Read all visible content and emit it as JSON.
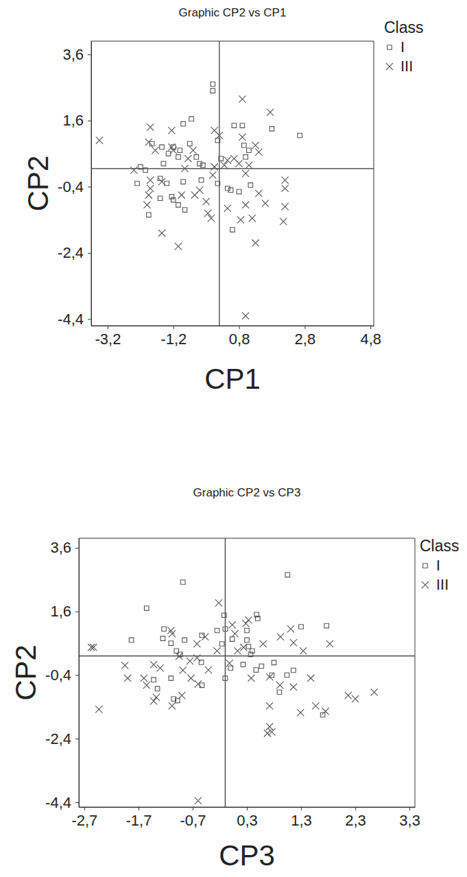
{
  "chart_data": [
    {
      "type": "scatter",
      "title": "Graphic CP2 vs CP1",
      "x_label": "CP1",
      "y_label": "CP2",
      "legend_title": "Class",
      "legend": "right",
      "grid": false,
      "xlim": [
        -3.7,
        4.9
      ],
      "ylim": [
        -4.6,
        4.0
      ],
      "xticks": [
        {
          "value": -3.2,
          "label": "-3,2"
        },
        {
          "value": -1.2,
          "label": "-1,2"
        },
        {
          "value": 0.8,
          "label": "0,8"
        },
        {
          "value": 2.8,
          "label": "2,8"
        },
        {
          "value": 4.8,
          "label": "4,8"
        }
      ],
      "yticks": [
        {
          "value": 3.6,
          "label": "3,6"
        },
        {
          "value": 1.6,
          "label": "1,6"
        },
        {
          "value": -0.4,
          "label": "-0,4"
        },
        {
          "value": -2.4,
          "label": "-2,4"
        },
        {
          "value": -4.4,
          "label": "-4,4"
        }
      ],
      "reference_lines": {
        "x": 0.2,
        "y": 0.15
      },
      "series": [
        {
          "name": "I",
          "marker": "square",
          "color": "#555555",
          "x": [
            0.0,
            0.0,
            -0.65,
            -0.9,
            0.65,
            0.9,
            1.8,
            2.65,
            0.15,
            -1.85,
            -1.55,
            -1.2,
            -1.0,
            -0.7,
            -1.35,
            -1.05,
            -0.5,
            0.95,
            1.1,
            1.0,
            -1.5,
            -0.4,
            -0.3,
            0.25,
            -2.2,
            -2.3,
            -1.6,
            -1.4,
            -0.9,
            -0.35,
            0.15,
            0.45,
            0.55,
            0.8,
            -1.6,
            -1.25,
            -1.2,
            -1.05,
            -0.85,
            -1.95,
            0.6,
            1.15,
            -2.05
          ],
          "values": [
            2.7,
            2.5,
            1.65,
            1.5,
            1.45,
            1.45,
            1.35,
            1.15,
            1.0,
            0.9,
            0.8,
            0.8,
            0.7,
            0.9,
            0.6,
            0.5,
            0.5,
            0.85,
            0.7,
            0.5,
            0.3,
            0.3,
            0.25,
            0.45,
            0.2,
            -0.3,
            -0.15,
            -0.3,
            -0.25,
            -0.2,
            -0.3,
            -0.45,
            -0.5,
            -0.55,
            -0.75,
            -0.7,
            -0.8,
            -0.95,
            -1.1,
            -1.25,
            -1.7,
            -0.35,
            0.1
          ]
        },
        {
          "name": "III",
          "marker": "cross",
          "color": "#555555",
          "x": [
            -3.45,
            0.9,
            1.75,
            -1.9,
            -1.25,
            0.05,
            0.2,
            0.9,
            -1.95,
            -1.75,
            -1.25,
            -1.2,
            -0.6,
            1.3,
            1.4,
            -0.85,
            0.45,
            0.65,
            0.8,
            0.35,
            0.05,
            1.1,
            -2.4,
            -1.9,
            -1.55,
            0.0,
            1.0,
            2.2,
            2.2,
            -1.9,
            -1.95,
            -2.0,
            -0.4,
            -0.55,
            -0.95,
            -0.2,
            1.0,
            1.4,
            1.6,
            2.2,
            -0.15,
            -0.05,
            0.45,
            1.2,
            2.15,
            0.85,
            -1.55,
            -1.05,
            1.3,
            1.0,
            -0.75
          ],
          "values": [
            1.0,
            2.25,
            1.85,
            1.4,
            1.3,
            1.3,
            1.15,
            1.1,
            0.95,
            0.7,
            0.8,
            0.7,
            0.7,
            0.85,
            0.65,
            0.15,
            0.4,
            0.45,
            0.3,
            0.25,
            0.2,
            0.25,
            0.1,
            -0.2,
            -0.25,
            -0.05,
            0.0,
            -0.2,
            -0.45,
            -0.45,
            -0.65,
            -0.95,
            -0.5,
            -0.65,
            -0.65,
            -0.85,
            -0.95,
            -0.6,
            -0.9,
            -1.0,
            -1.2,
            -1.35,
            -1.05,
            -1.35,
            -1.45,
            -1.4,
            -1.8,
            -2.2,
            -2.1,
            -4.3,
            0.45
          ]
        }
      ]
    },
    {
      "type": "scatter",
      "title": "Graphic CP2 vs CP3",
      "x_label": "CP3",
      "y_label": "CP2",
      "legend_title": "Class",
      "legend": "right",
      "grid": false,
      "xlim": [
        -2.8,
        3.4
      ],
      "ylim": [
        -4.55,
        3.9
      ],
      "xticks": [
        {
          "value": -2.7,
          "label": "-2,7"
        },
        {
          "value": -1.7,
          "label": "-1,7"
        },
        {
          "value": -0.7,
          "label": "-0,7"
        },
        {
          "value": 0.3,
          "label": "0,3"
        },
        {
          "value": 1.3,
          "label": "1,3"
        },
        {
          "value": 2.3,
          "label": "2,3"
        },
        {
          "value": 3.3,
          "label": "3,3"
        }
      ],
      "yticks": [
        {
          "value": 3.6,
          "label": "3,6"
        },
        {
          "value": 1.6,
          "label": "1,6"
        },
        {
          "value": -0.4,
          "label": "-0,4"
        },
        {
          "value": -2.4,
          "label": "-2,4"
        },
        {
          "value": -4.4,
          "label": "-4,4"
        }
      ],
      "reference_lines": {
        "x": -0.1,
        "y": 0.2
      },
      "series": [
        {
          "name": "I",
          "marker": "square",
          "color": "#555555",
          "x": [
            1.05,
            -0.88,
            -1.55,
            1.3,
            1.77,
            -0.12,
            0.48,
            0.5,
            -1.83,
            -1.23,
            -1.25,
            -1.1,
            -0.85,
            -0.53,
            -0.25,
            -0.1,
            -0.16,
            0.03,
            0.3,
            0.3,
            0.33,
            0.4,
            0.37,
            -1.0,
            -0.93,
            -1.42,
            -1.35,
            -1.05,
            -0.98,
            -0.53,
            0.0,
            0.23,
            0.47,
            0.57,
            0.76,
            0.8,
            1.04,
            1.16,
            0.9,
            -0.1,
            1.7,
            -1.1,
            -0.54
          ],
          "values": [
            2.75,
            2.52,
            1.7,
            1.12,
            1.15,
            1.48,
            1.5,
            1.38,
            0.7,
            1.05,
            0.75,
            0.6,
            0.7,
            0.85,
            1.0,
            1.05,
            0.58,
            0.73,
            1.0,
            0.7,
            0.5,
            0.36,
            0.25,
            0.36,
            0.25,
            -0.55,
            -0.83,
            -1.15,
            -1.2,
            -0.72,
            -0.18,
            -0.07,
            -0.24,
            -0.12,
            -0.4,
            -0.01,
            -0.4,
            -0.25,
            -0.94,
            -0.5,
            -1.65,
            -0.5,
            0.0
          ]
        },
        {
          "name": "III",
          "marker": "cross",
          "color": "#555555",
          "x": [
            -2.57,
            -2.53,
            -2.43,
            -1.95,
            -1.9,
            -1.42,
            -1.3,
            -1.6,
            -1.55,
            -1.37,
            -1.1,
            -1.08,
            -0.95,
            -0.88,
            -0.75,
            -0.73,
            -0.6,
            -1.08,
            -0.9,
            -0.62,
            -0.62,
            -0.47,
            -0.41,
            -0.25,
            -0.22,
            0.03,
            0.08,
            0.13,
            -0.02,
            0.24,
            0.33,
            0.38,
            0.6,
            0.72,
            0.72,
            0.72,
            0.68,
            0.76,
            0.92,
            1.11,
            1.16,
            0.91,
            1.16,
            1.29,
            1.34,
            1.48,
            1.57,
            1.75,
            1.83,
            2.17,
            2.3,
            2.65,
            -0.6,
            -1.42,
            0.28
          ],
          "values": [
            0.47,
            0.47,
            -1.48,
            -0.1,
            -0.5,
            -0.07,
            -0.18,
            -0.5,
            -0.72,
            -1.1,
            1.0,
            0.9,
            0.19,
            -0.25,
            0.04,
            -0.5,
            -0.68,
            -1.37,
            -1.04,
            0.58,
            0.14,
            0.8,
            -0.24,
            0.36,
            1.87,
            1.18,
            0.9,
            0.36,
            -0.03,
            0.47,
            1.33,
            -0.5,
            0.58,
            -0.46,
            -1.37,
            -2.02,
            -2.23,
            -2.19,
            0.8,
            1.05,
            0.62,
            -0.72,
            -0.78,
            -1.58,
            0.36,
            -0.5,
            -1.37,
            -1.54,
            0.58,
            -1.04,
            -1.15,
            -0.94,
            -4.35,
            -1.22,
            1.22
          ]
        }
      ]
    }
  ]
}
